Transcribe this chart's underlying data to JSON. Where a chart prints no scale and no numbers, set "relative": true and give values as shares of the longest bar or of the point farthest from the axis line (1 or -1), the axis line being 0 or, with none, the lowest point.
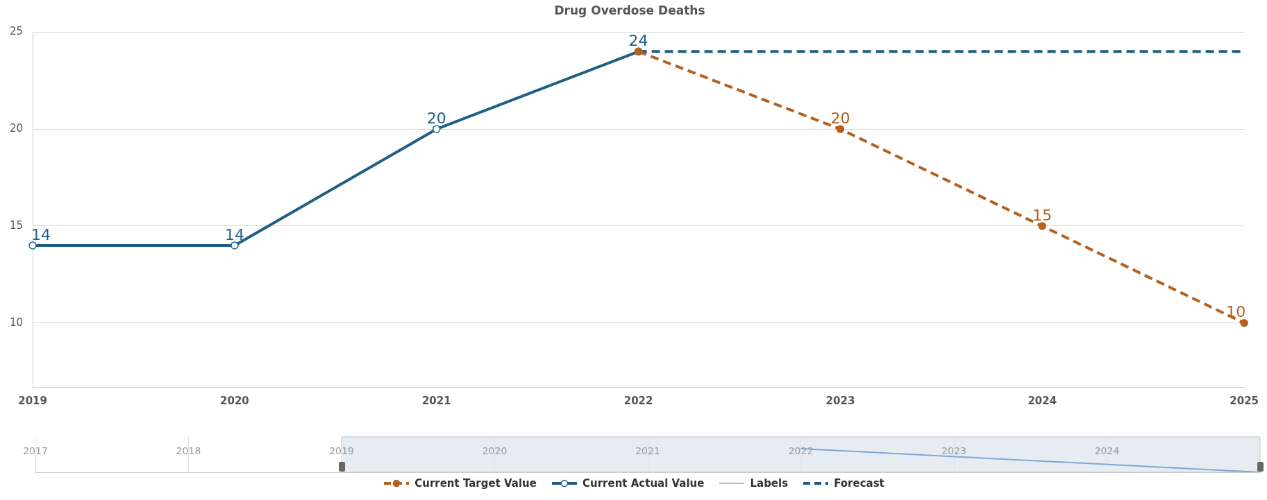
{
  "chart_data": [
    {
      "type": "line",
      "title": "Drug Overdose Deaths",
      "categories": [
        "2019",
        "2020",
        "2021",
        "2022",
        "2023",
        "2024",
        "2025"
      ],
      "series": [
        {
          "name": "Current Target Value",
          "color": "#b5601c",
          "marker": "circle",
          "line_style": "dashed",
          "values": [
            null,
            null,
            null,
            24,
            20,
            15,
            10
          ],
          "value_labels": [
            null,
            null,
            null,
            null,
            "20",
            "15",
            "10"
          ]
        },
        {
          "name": "Current Actual Value",
          "color": "#1f5f85",
          "marker": "circle",
          "line_style": "solid",
          "values": [
            14,
            14,
            20,
            24,
            null,
            null,
            null
          ],
          "value_labels": [
            "14",
            "14",
            "20",
            "24",
            null,
            null,
            null
          ]
        },
        {
          "name": "Labels",
          "color": "#7fa7d6",
          "marker": "none",
          "line_style": "solid",
          "values": [
            null,
            null,
            null,
            null,
            null,
            null,
            null
          ]
        },
        {
          "name": "Forecast",
          "color": "#1f5f85",
          "marker": "none",
          "line_style": "dashed",
          "values": [
            null,
            null,
            null,
            24,
            24,
            24,
            24
          ]
        }
      ],
      "ylim": [
        6.7,
        25
      ],
      "yticks": [
        10,
        15,
        20,
        25
      ],
      "grid": "y",
      "legend": "bottom"
    },
    {
      "type": "line",
      "relative": true,
      "tick_labels": "x",
      "xlim": [
        2017,
        2025
      ],
      "xticks": [
        2017,
        2018,
        2019,
        2020,
        2021,
        2022,
        2023,
        2024,
        {
          "value": 2025,
          "label": null
        }
      ],
      "series": [
        {
          "color": "#7fa7d6",
          "x": [
            2022,
            2025
          ],
          "values": [
            1,
            0
          ]
        }
      ],
      "bands": [
        {
          "axis": "x",
          "from": 2019,
          "to": 2025,
          "color": "#e6ecf2"
        }
      ],
      "grid": "x"
    }
  ]
}
